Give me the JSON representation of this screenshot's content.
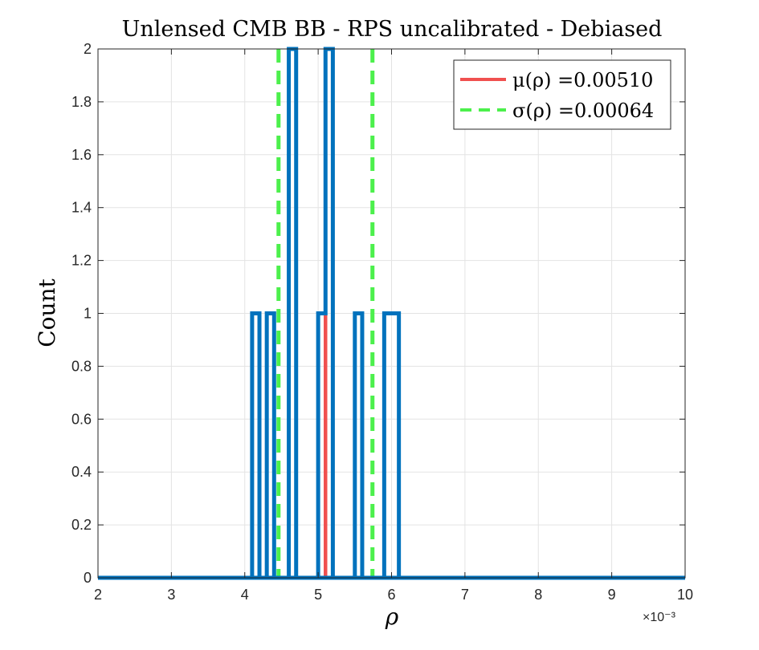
{
  "chart_data": {
    "type": "histogram",
    "title": "Unlensed CMB BB - RPS uncalibrated - Debiased",
    "xlabel": "ρ",
    "ylabel": "Count",
    "x_exponent_label": "×10⁻³",
    "x_scale": 0.001,
    "xlim": [
      0.002,
      0.01
    ],
    "ylim": [
      0,
      2
    ],
    "x_ticks": [
      2,
      3,
      4,
      5,
      6,
      7,
      8,
      9,
      10
    ],
    "y_ticks": [
      0,
      0.2,
      0.4,
      0.6,
      0.8,
      1,
      1.2,
      1.4,
      1.6,
      1.8,
      2
    ],
    "y_tick_labels": [
      "0",
      "0.2",
      "0.4",
      "0.6",
      "0.8",
      "1",
      "1.2",
      "1.4",
      "1.6",
      "1.8",
      "2"
    ],
    "grid": true,
    "bin_edges": [
      0.002,
      0.0041,
      0.0042,
      0.0043,
      0.0044,
      0.0045,
      0.0046,
      0.0047,
      0.0048,
      0.0049,
      0.005,
      0.0051,
      0.0052,
      0.0053,
      0.0054,
      0.0055,
      0.0056,
      0.0057,
      0.0058,
      0.0059,
      0.006,
      0.0061,
      0.0062,
      0.01
    ],
    "counts": [
      0,
      1,
      0,
      1,
      0,
      0,
      2,
      0,
      0,
      0,
      1,
      2,
      0,
      0,
      0,
      1,
      0,
      0,
      0,
      1,
      1,
      0,
      0
    ],
    "series_color": "#0072BD",
    "mean_line": {
      "x": 0.0051,
      "color": "#F0504F",
      "legend": "μ(ρ) =0.00510"
    },
    "sigma_lines": {
      "x": [
        0.00446,
        0.00574
      ],
      "color": "#4CF04C",
      "legend": "σ(ρ) =0.00064"
    },
    "legend_position": "top-right"
  }
}
